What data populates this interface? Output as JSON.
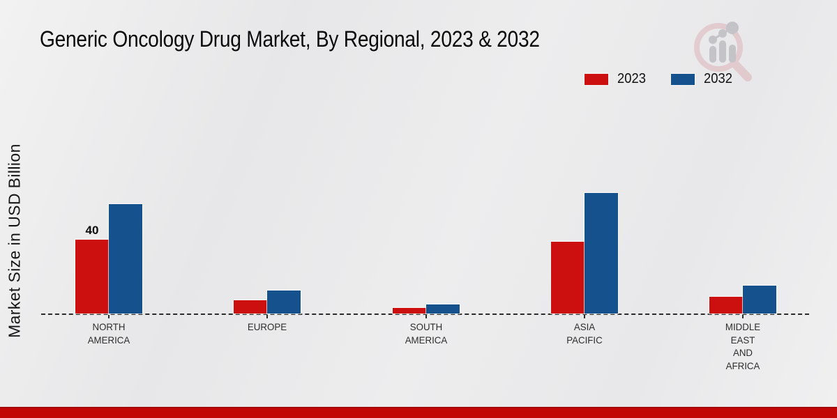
{
  "title": "Generic Oncology Drug Market, By Regional, 2023 & 2032",
  "y_axis_label": "Market Size in USD Billion",
  "legend": [
    {
      "label": "2023",
      "color": "#cc1010"
    },
    {
      "label": "2032",
      "color": "#15518c"
    }
  ],
  "colors": {
    "bar_2023": "#cc1010",
    "bar_2032": "#15518c",
    "baseline": "#2b2b2b",
    "footer_strip": "#c20606",
    "background": "#ebebec"
  },
  "logo_icon": "magnifier-bar-chart-watermark",
  "chart_data": {
    "type": "bar",
    "title": "Generic Oncology Drug Market, By Regional, 2023 & 2032",
    "xlabel": "",
    "ylabel": "Market Size in USD Billion",
    "categories": [
      "NORTH AMERICA",
      "EUROPE",
      "SOUTH AMERICA",
      "ASIA PACIFIC",
      "MIDDLE EAST AND AFRICA"
    ],
    "series": [
      {
        "name": "2023",
        "color": "#cc1010",
        "values": [
          40,
          7.2,
          3,
          38.9,
          9
        ]
      },
      {
        "name": "2032",
        "color": "#15518c",
        "values": [
          59.3,
          12.3,
          4.9,
          65.3,
          15.2
        ]
      }
    ],
    "annotations": [
      {
        "series_index": 0,
        "category_index": 0,
        "text": "40"
      }
    ],
    "ylim": [
      0,
      70
    ],
    "grid": false,
    "axis_style": "dashed-baseline-only",
    "legend_position": "top-right"
  }
}
